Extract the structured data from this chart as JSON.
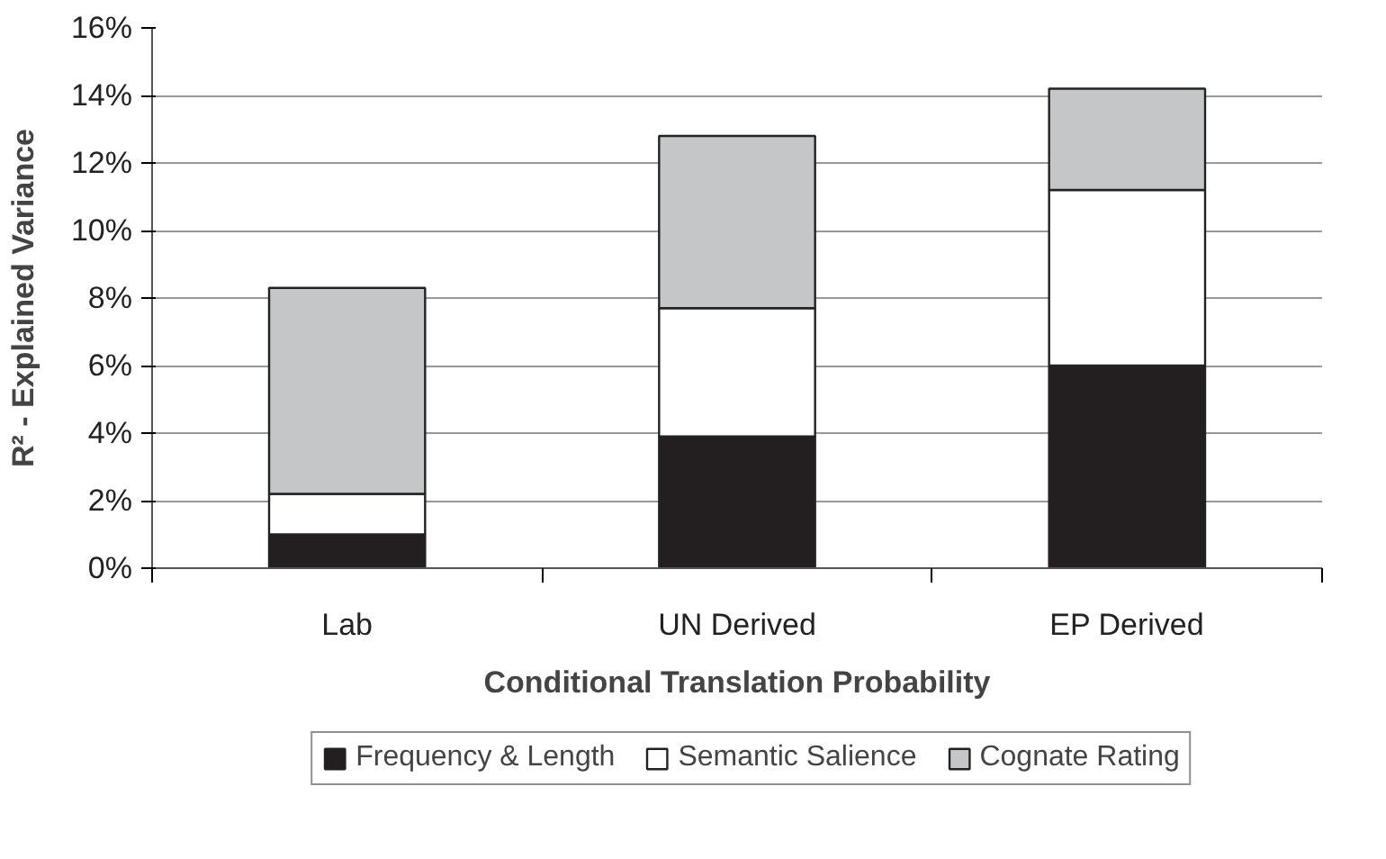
{
  "chart_data": {
    "type": "bar",
    "stacked": true,
    "xlabel": "Conditional Translation Probability",
    "ylabel": "R² - Explained Variance",
    "categories": [
      "Lab",
      "UN Derived",
      "EP Derived"
    ],
    "series": [
      {
        "name": "Frequency & Length",
        "color": "#231f20",
        "values": [
          1.0,
          3.9,
          6.0
        ]
      },
      {
        "name": "Semantic Salience",
        "color": "#ffffff",
        "values": [
          1.2,
          3.8,
          5.2
        ]
      },
      {
        "name": "Cognate Rating",
        "color": "#c4c6c8",
        "values": [
          6.1,
          5.1,
          3.0
        ]
      }
    ],
    "ylim": [
      0,
      16
    ],
    "yticks": [
      {
        "value": 0,
        "label": "0%"
      },
      {
        "value": 2,
        "label": "2%"
      },
      {
        "value": 4,
        "label": "4%"
      },
      {
        "value": 6,
        "label": "6%"
      },
      {
        "value": 8,
        "label": "8%"
      },
      {
        "value": 10,
        "label": "10%"
      },
      {
        "value": 12,
        "label": "12%"
      },
      {
        "value": 14,
        "label": "14%"
      },
      {
        "value": 16,
        "label": "16%"
      }
    ],
    "grid": "y",
    "legend": "bottom"
  }
}
